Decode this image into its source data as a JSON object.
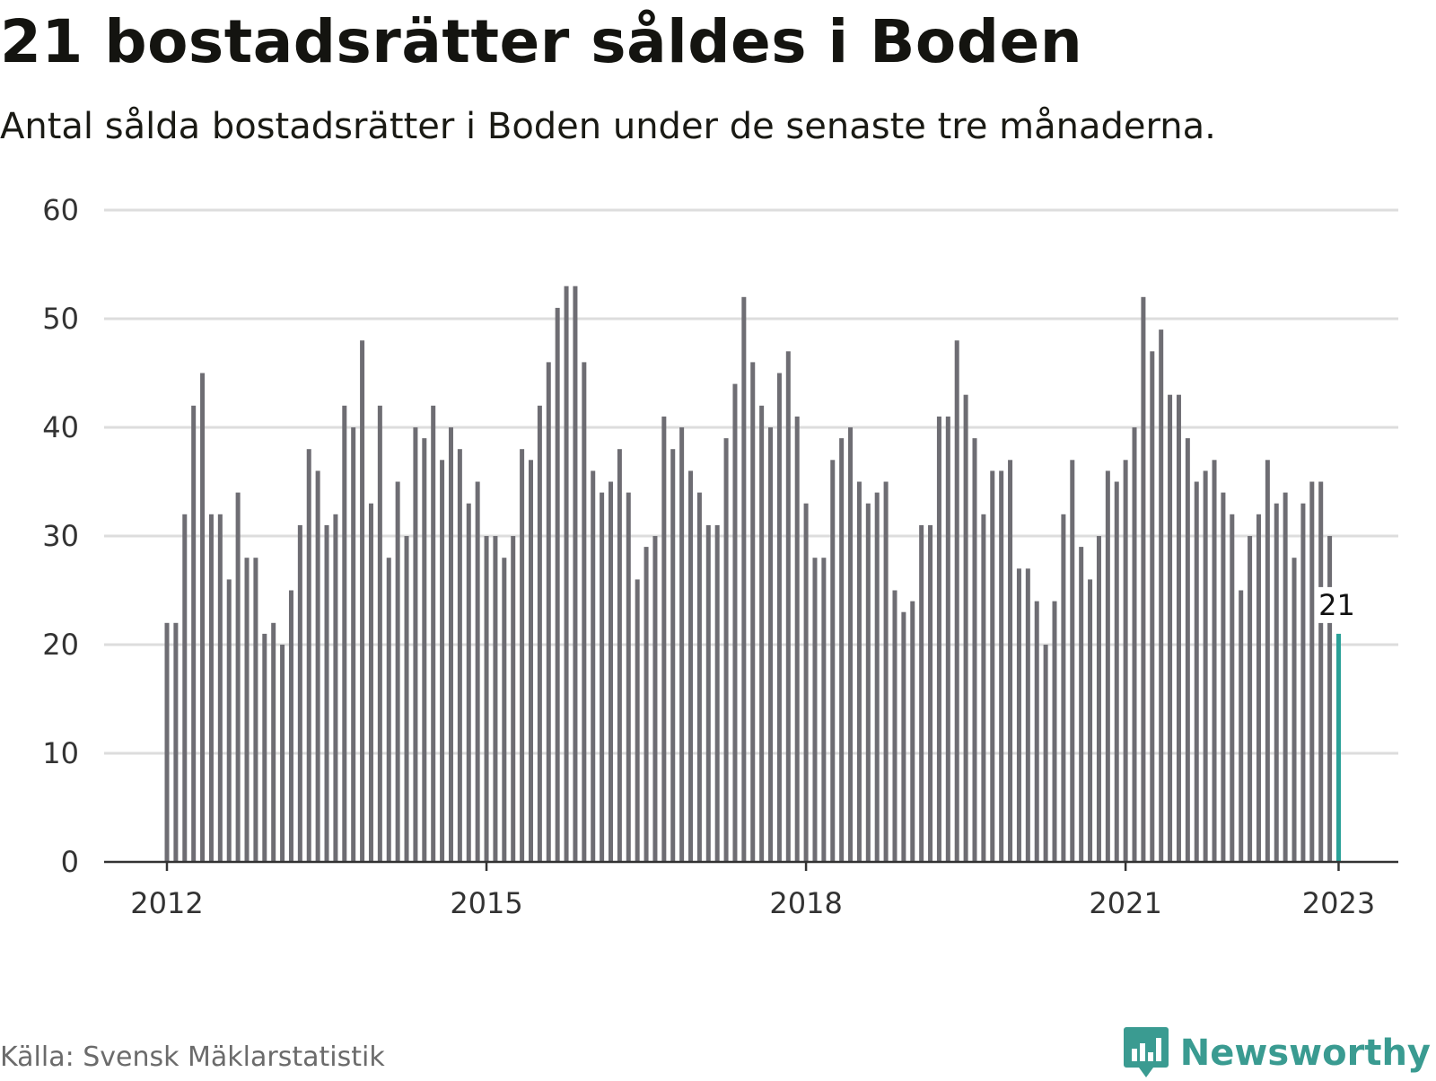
{
  "header": {
    "title": "21 bostadsrätter såldes i Boden",
    "subtitle": "Antal sålda bostadsrätter i Boden under de senaste tre månaderna."
  },
  "footer": {
    "source": "Källa: Svensk Mäklarstatistik",
    "brand": "Newsworthy"
  },
  "colors": {
    "bar": "#6e6d73",
    "highlight": "#2aa198",
    "grid": "#dddddd",
    "axis": "#333333",
    "brand": "#3a9b91"
  },
  "chart_data": {
    "type": "bar",
    "title": "21 bostadsrätter såldes i Boden",
    "subtitle": "Antal sålda bostadsrätter i Boden under de senaste tre månaderna.",
    "xlabel": "",
    "ylabel": "",
    "ylim": [
      0,
      60
    ],
    "yticks": [
      0,
      10,
      20,
      30,
      40,
      50,
      60
    ],
    "grid": true,
    "xticks": [
      {
        "label": "2012",
        "index": 0
      },
      {
        "label": "2015",
        "index": 36
      },
      {
        "label": "2018",
        "index": 72
      },
      {
        "label": "2021",
        "index": 108
      },
      {
        "label": "2023",
        "index": 132
      }
    ],
    "start": "2012-01",
    "end": "2023-01",
    "values": [
      22,
      22,
      32,
      42,
      45,
      32,
      32,
      26,
      34,
      28,
      28,
      21,
      22,
      20,
      25,
      31,
      38,
      36,
      31,
      32,
      42,
      40,
      48,
      33,
      42,
      28,
      35,
      30,
      40,
      39,
      42,
      37,
      40,
      38,
      33,
      35,
      30,
      30,
      28,
      30,
      38,
      37,
      42,
      46,
      51,
      53,
      53,
      46,
      36,
      34,
      35,
      38,
      34,
      26,
      29,
      30,
      41,
      38,
      40,
      36,
      34,
      31,
      31,
      39,
      44,
      52,
      46,
      42,
      40,
      45,
      47,
      41,
      33,
      28,
      28,
      37,
      39,
      40,
      35,
      33,
      34,
      35,
      25,
      23,
      24,
      31,
      31,
      41,
      41,
      48,
      43,
      39,
      32,
      36,
      36,
      37,
      27,
      27,
      24,
      20,
      24,
      32,
      37,
      29,
      26,
      30,
      36,
      35,
      37,
      40,
      52,
      47,
      49,
      43,
      43,
      39,
      35,
      36,
      37,
      34,
      32,
      25,
      30,
      32,
      37,
      33,
      34,
      28,
      33,
      35,
      35,
      30,
      21
    ],
    "highlight": {
      "index": 132,
      "label": "21"
    }
  }
}
